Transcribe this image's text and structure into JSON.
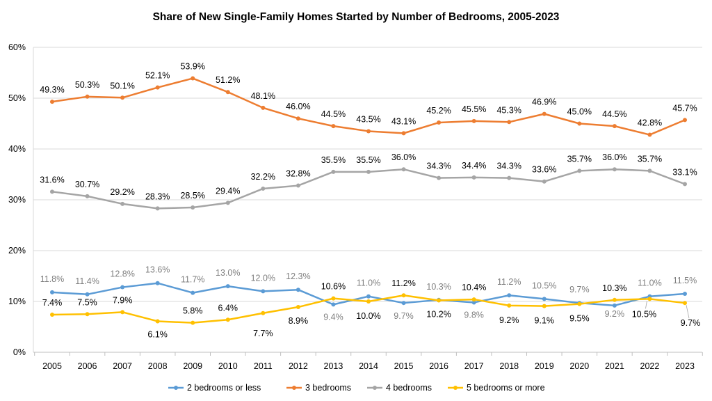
{
  "chart_data": {
    "type": "line",
    "title": "Share of New Single-Family Homes Started by Number of Bedrooms, 2005-2023",
    "categories": [
      "2005",
      "2006",
      "2007",
      "2008",
      "2009",
      "2010",
      "2011",
      "2012",
      "2013",
      "2014",
      "2015",
      "2016",
      "2017",
      "2018",
      "2019",
      "2020",
      "2021",
      "2022",
      "2023"
    ],
    "y_ticks": [
      "0%",
      "10%",
      "20%",
      "30%",
      "40%",
      "50%",
      "60%"
    ],
    "ylim": [
      0,
      60
    ],
    "grid": "horizontal",
    "legend_position": "bottom",
    "series": [
      {
        "name": "2 bedrooms or less",
        "color": "#5B9BD5",
        "label_color": "#7F7F7F",
        "values": [
          11.8,
          11.4,
          12.8,
          13.6,
          11.7,
          13.0,
          12.0,
          12.3,
          9.4,
          11.0,
          9.7,
          10.3,
          9.8,
          11.2,
          10.5,
          9.7,
          9.2,
          11.0,
          11.5
        ],
        "labels": [
          "11.8%",
          "11.4%",
          "12.8%",
          "13.6%",
          "11.7%",
          "13.0%",
          "12.0%",
          "12.3%",
          "9.4%",
          "11.0%",
          "9.7%",
          "10.3%",
          "9.8%",
          "11.2%",
          "10.5%",
          "9.7%",
          "9.2%",
          "11.0%",
          "11.5%"
        ]
      },
      {
        "name": "3 bedrooms",
        "color": "#ED7D31",
        "label_color": "#000000",
        "values": [
          49.3,
          50.3,
          50.1,
          52.1,
          53.9,
          51.2,
          48.1,
          46.0,
          44.5,
          43.5,
          43.1,
          45.2,
          45.5,
          45.3,
          46.9,
          45.0,
          44.5,
          42.8,
          45.7
        ],
        "labels": [
          "49.3%",
          "50.3%",
          "50.1%",
          "52.1%",
          "53.9%",
          "51.2%",
          "48.1%",
          "46.0%",
          "44.5%",
          "43.5%",
          "43.1%",
          "45.2%",
          "45.5%",
          "45.3%",
          "46.9%",
          "45.0%",
          "44.5%",
          "42.8%",
          "45.7%"
        ]
      },
      {
        "name": "4 bedrooms",
        "color": "#A5A5A5",
        "label_color": "#000000",
        "values": [
          31.6,
          30.7,
          29.2,
          28.3,
          28.5,
          29.4,
          32.2,
          32.8,
          35.5,
          35.5,
          36.0,
          34.3,
          34.4,
          34.3,
          33.6,
          35.7,
          36.0,
          35.7,
          33.1
        ],
        "labels": [
          "31.6%",
          "30.7%",
          "29.2%",
          "28.3%",
          "28.5%",
          "29.4%",
          "32.2%",
          "32.8%",
          "35.5%",
          "35.5%",
          "36.0%",
          "34.3%",
          "34.4%",
          "34.3%",
          "33.6%",
          "35.7%",
          "36.0%",
          "35.7%",
          "33.1%"
        ]
      },
      {
        "name": "5 bedrooms or more",
        "color": "#FFC000",
        "label_color": "#000000",
        "values": [
          7.4,
          7.5,
          7.9,
          6.1,
          5.8,
          6.4,
          7.7,
          8.9,
          10.6,
          10.0,
          11.2,
          10.2,
          10.4,
          9.2,
          9.1,
          9.5,
          10.3,
          10.5,
          9.7
        ],
        "labels": [
          "7.4%",
          "7.5%",
          "7.9%",
          "6.1%",
          "5.8%",
          "6.4%",
          "7.7%",
          "8.9%",
          "10.6%",
          "10.0%",
          "11.2%",
          "10.2%",
          "10.4%",
          "9.2%",
          "9.1%",
          "9.5%",
          "10.3%",
          "10.5%",
          "9.7%"
        ]
      }
    ]
  }
}
